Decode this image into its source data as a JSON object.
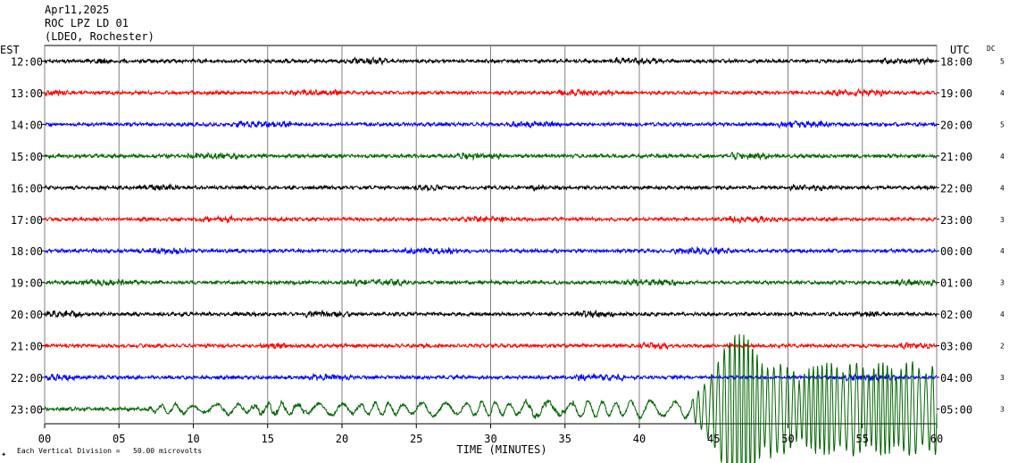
{
  "header": {
    "date": "Apr11,2025",
    "station": "ROC LPZ LD 01",
    "network": "(LDEO, Rochester)"
  },
  "left_axis_title": "EST",
  "right_axis_title": "UTC",
  "dc_title": "DC",
  "footer": {
    "icon_text": "✚",
    "scale_note": "Each Vertical Division =   50.00 microvolts"
  },
  "colors": {
    "background": "#ffffff",
    "grid": "#808080",
    "trace_cycle": [
      "#000000",
      "#ff0000",
      "#0000ff",
      "#006400"
    ]
  },
  "chart_data": {
    "type": "line",
    "title": "Apr11,2025 ROC LPZ LD 01 (LDEO, Rochester)",
    "xlabel": "TIME (MINUTES)",
    "xlim": [
      0,
      60
    ],
    "x_ticks": [
      "00",
      "05",
      "10",
      "15",
      "20",
      "25",
      "30",
      "35",
      "40",
      "45",
      "50",
      "55",
      "60"
    ],
    "grid": true,
    "rows": [
      {
        "est": "12:00",
        "utc": "18:00",
        "dc": "5",
        "color": "#000000"
      },
      {
        "est": "13:00",
        "utc": "19:00",
        "dc": "4",
        "color": "#ff0000"
      },
      {
        "est": "14:00",
        "utc": "20:00",
        "dc": "5",
        "color": "#0000ff"
      },
      {
        "est": "15:00",
        "utc": "21:00",
        "dc": "4",
        "color": "#006400"
      },
      {
        "est": "16:00",
        "utc": "22:00",
        "dc": "4",
        "color": "#000000"
      },
      {
        "est": "17:00",
        "utc": "23:00",
        "dc": "3",
        "color": "#ff0000"
      },
      {
        "est": "18:00",
        "utc": "00:00",
        "dc": "4",
        "color": "#0000ff"
      },
      {
        "est": "19:00",
        "utc": "01:00",
        "dc": "3",
        "color": "#006400"
      },
      {
        "est": "20:00",
        "utc": "02:00",
        "dc": "4",
        "color": "#000000"
      },
      {
        "est": "21:00",
        "utc": "03:00",
        "dc": "2",
        "color": "#ff0000"
      },
      {
        "est": "22:00",
        "utc": "04:00",
        "dc": "3",
        "color": "#0000ff"
      },
      {
        "est": "23:00",
        "utc": "05:00",
        "dc": "3",
        "color": "#006400"
      }
    ],
    "events": [
      {
        "row": "23:00",
        "start_minute": 7,
        "end_minute": 43.5,
        "amplitude": "moderate"
      },
      {
        "row": "23:00",
        "start_minute": 43.5,
        "end_minute": 60,
        "amplitude": "large"
      }
    ]
  }
}
